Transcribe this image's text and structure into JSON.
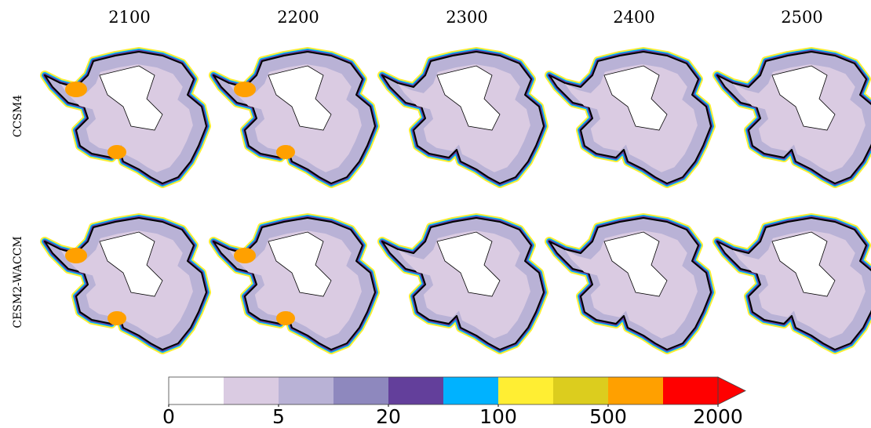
{
  "column_titles": [
    "2100",
    "2200",
    "2300",
    "2400",
    "2500"
  ],
  "row_labels": [
    "CCSM4",
    "CESM2-WACCM"
  ],
  "colorbar": {
    "colors": [
      "#ffffff",
      "#dacbe2",
      "#b9b2d6",
      "#8e88be",
      "#633f9b",
      "#00b2ff",
      "#ffee33",
      "#dccd1e",
      "#ffa000",
      "#ff0000"
    ],
    "ticks": [
      0,
      5,
      20,
      100,
      500,
      2000
    ],
    "extend": "max"
  }
}
